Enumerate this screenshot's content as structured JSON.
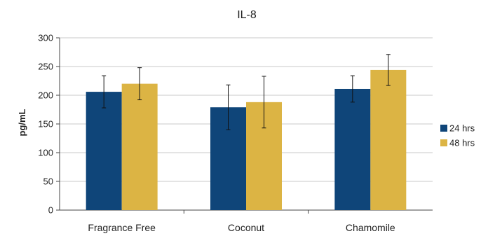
{
  "chart_data": {
    "type": "bar",
    "title": "IL-8",
    "xlabel": "",
    "ylabel": "pg/mL",
    "ylim": [
      0,
      300
    ],
    "yticks": [
      0,
      50,
      100,
      150,
      200,
      250,
      300
    ],
    "categories": [
      "Fragrance Free",
      "Coconut",
      "Chamomile"
    ],
    "series": [
      {
        "name": "24 hrs",
        "color": "#0f4579",
        "values": [
          206,
          179,
          211
        ],
        "errors": [
          28,
          39,
          23
        ]
      },
      {
        "name": "48 hrs",
        "color": "#dcb444",
        "values": [
          220,
          188,
          244
        ],
        "errors": [
          28,
          45,
          27
        ]
      }
    ],
    "grid": true,
    "legend": "right"
  }
}
